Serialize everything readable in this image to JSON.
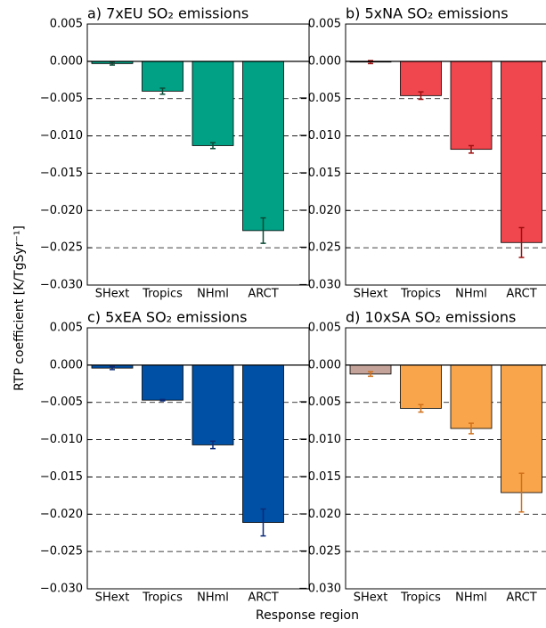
{
  "ylabel": "RTP coefficient [K/TgSyr⁻¹]",
  "xlabel": "Response region",
  "chart_data": [
    {
      "type": "bar",
      "title": "a)  7xEU SO₂ emissions",
      "categories": [
        "SHext",
        "Tropics",
        "NHml",
        "ARCT"
      ],
      "values": [
        -0.0003,
        -0.004,
        -0.0113,
        -0.0227
      ],
      "errors": [
        0.0002,
        0.0004,
        0.0004,
        0.0017
      ],
      "colors": [
        "#00a185",
        "#00a185",
        "#00a185",
        "#00a185"
      ],
      "error_color": "#0b4a36",
      "ylim": [
        -0.03,
        0.005
      ],
      "yticks": [
        {
          "value": -0.03,
          "label": "−0.030"
        },
        {
          "value": -0.025,
          "label": "−0.025"
        },
        {
          "value": -0.02,
          "label": "−0.020"
        },
        {
          "value": -0.015,
          "label": "−0.015"
        },
        {
          "value": -0.01,
          "label": "−0.010"
        },
        {
          "value": -0.005,
          "label": "−0.005"
        },
        {
          "value": 0,
          "label": "0.000"
        },
        {
          "value": 0.005,
          "label": "0.005"
        }
      ],
      "grid": true
    },
    {
      "type": "bar",
      "title": "b)  5xNA SO₂ emissions",
      "categories": [
        "SHext",
        "Tropics",
        "NHml",
        "ARCT"
      ],
      "values": [
        -0.0001,
        -0.0046,
        -0.0118,
        -0.0243
      ],
      "errors": [
        0.0002,
        0.0005,
        0.0005,
        0.002
      ],
      "colors": [
        "#f0464e",
        "#f0464e",
        "#f0464e",
        "#f0464e"
      ],
      "error_color": "#a01010",
      "ylim": [
        -0.03,
        0.005
      ],
      "yticks": [
        {
          "value": -0.03,
          "label": "−0.030"
        },
        {
          "value": -0.025,
          "label": "−0.025"
        },
        {
          "value": -0.02,
          "label": "−0.020"
        },
        {
          "value": -0.015,
          "label": "−0.015"
        },
        {
          "value": -0.01,
          "label": "−0.010"
        },
        {
          "value": -0.005,
          "label": "−0.005"
        },
        {
          "value": 0,
          "label": "0.000"
        },
        {
          "value": 0.005,
          "label": "0.005"
        }
      ],
      "grid": true
    },
    {
      "type": "bar",
      "title": "c)  5xEA SO₂ emissions",
      "categories": [
        "SHext",
        "Tropics",
        "NHml",
        "ARCT"
      ],
      "values": [
        -0.0004,
        -0.0047,
        -0.0107,
        -0.0211
      ],
      "errors": [
        0.0002,
        0.0001,
        0.0005,
        0.0018
      ],
      "colors": [
        "#0050a5",
        "#0050a5",
        "#0050a5",
        "#0050a5"
      ],
      "error_color": "#0b2a78",
      "ylim": [
        -0.03,
        0.005
      ],
      "yticks": [
        {
          "value": -0.03,
          "label": "−0.030"
        },
        {
          "value": -0.025,
          "label": "−0.025"
        },
        {
          "value": -0.02,
          "label": "−0.020"
        },
        {
          "value": -0.015,
          "label": "−0.015"
        },
        {
          "value": -0.01,
          "label": "−0.010"
        },
        {
          "value": -0.005,
          "label": "−0.005"
        },
        {
          "value": 0,
          "label": "0.000"
        },
        {
          "value": 0.005,
          "label": "0.005"
        }
      ],
      "grid": true
    },
    {
      "type": "bar",
      "title": "d) 10xSA SO₂ emissions",
      "categories": [
        "SHext",
        "Tropics",
        "NHml",
        "ARCT"
      ],
      "values": [
        -0.0012,
        -0.0058,
        -0.0085,
        -0.0171
      ],
      "errors": [
        0.0003,
        0.0005,
        0.0007,
        0.0026
      ],
      "colors": [
        "#c4a39a",
        "#f9a54b",
        "#f9a54b",
        "#f9a54b"
      ],
      "error_color": "#d0701a",
      "ylim": [
        -0.03,
        0.005
      ],
      "yticks": [
        {
          "value": -0.03,
          "label": "−0.030"
        },
        {
          "value": -0.025,
          "label": "−0.025"
        },
        {
          "value": -0.02,
          "label": "−0.020"
        },
        {
          "value": -0.015,
          "label": "−0.015"
        },
        {
          "value": -0.01,
          "label": "−0.010"
        },
        {
          "value": -0.005,
          "label": "−0.005"
        },
        {
          "value": 0,
          "label": "0.000"
        },
        {
          "value": 0.005,
          "label": "0.005"
        }
      ],
      "grid": true
    }
  ]
}
